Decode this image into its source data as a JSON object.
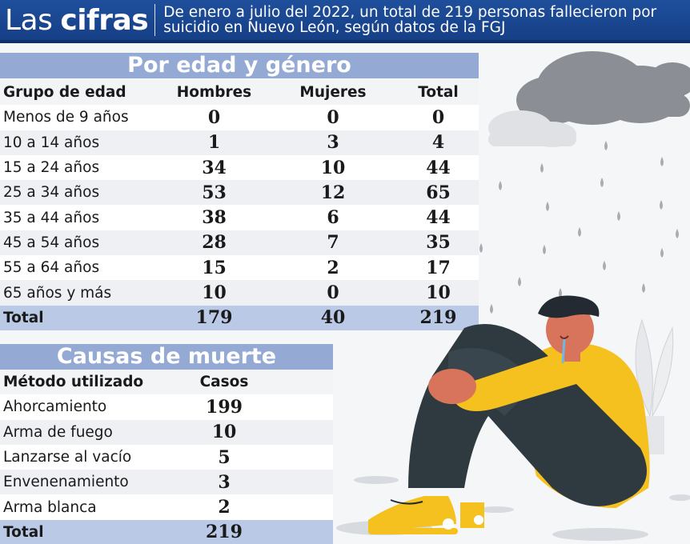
{
  "header": {
    "brand_light": "Las",
    "brand_bold": "cifras",
    "line1": "De enero a julio del 2022, un total de 219 personas fallecieron por",
    "line2": "suicidio en Nuevo León, según datos de la FGJ"
  },
  "age_table": {
    "title": "Por edad y género",
    "columns": [
      "Grupo de edad",
      "Hombres",
      "Mujeres",
      "Total"
    ],
    "rows": [
      [
        "Menos de 9 años",
        "0",
        "0",
        "0"
      ],
      [
        "10 a 14 años",
        "1",
        "3",
        "4"
      ],
      [
        "15 a 24 años",
        "34",
        "10",
        "44"
      ],
      [
        "25 a 34 años",
        "53",
        "12",
        "65"
      ],
      [
        "35 a 44 años",
        "38",
        "6",
        "44"
      ],
      [
        "45 a 54 años",
        "28",
        "7",
        "35"
      ],
      [
        "55 a 64 años",
        "15",
        "2",
        "17"
      ],
      [
        "65 años y más",
        "10",
        "0",
        "10"
      ]
    ],
    "total": [
      "Total",
      "179",
      "40",
      "219"
    ]
  },
  "cause_table": {
    "title": "Causas de muerte",
    "columns": [
      "Método utilizado",
      "Casos"
    ],
    "rows": [
      [
        "Ahorcamiento",
        "199"
      ],
      [
        "Arma de fuego",
        "10"
      ],
      [
        "Lanzarse al vacío",
        "5"
      ],
      [
        "Envenenamiento",
        "3"
      ],
      [
        "Arma blanca",
        "2"
      ]
    ],
    "total": [
      "Total",
      "219"
    ]
  },
  "colors": {
    "header_bg": "#1f4f9c",
    "banner_bg": "#94a9d3",
    "total_row_bg": "#b9c9e6",
    "sweater": "#f5c11f",
    "pants": "#2f3a40",
    "skin": "#d9745c"
  }
}
